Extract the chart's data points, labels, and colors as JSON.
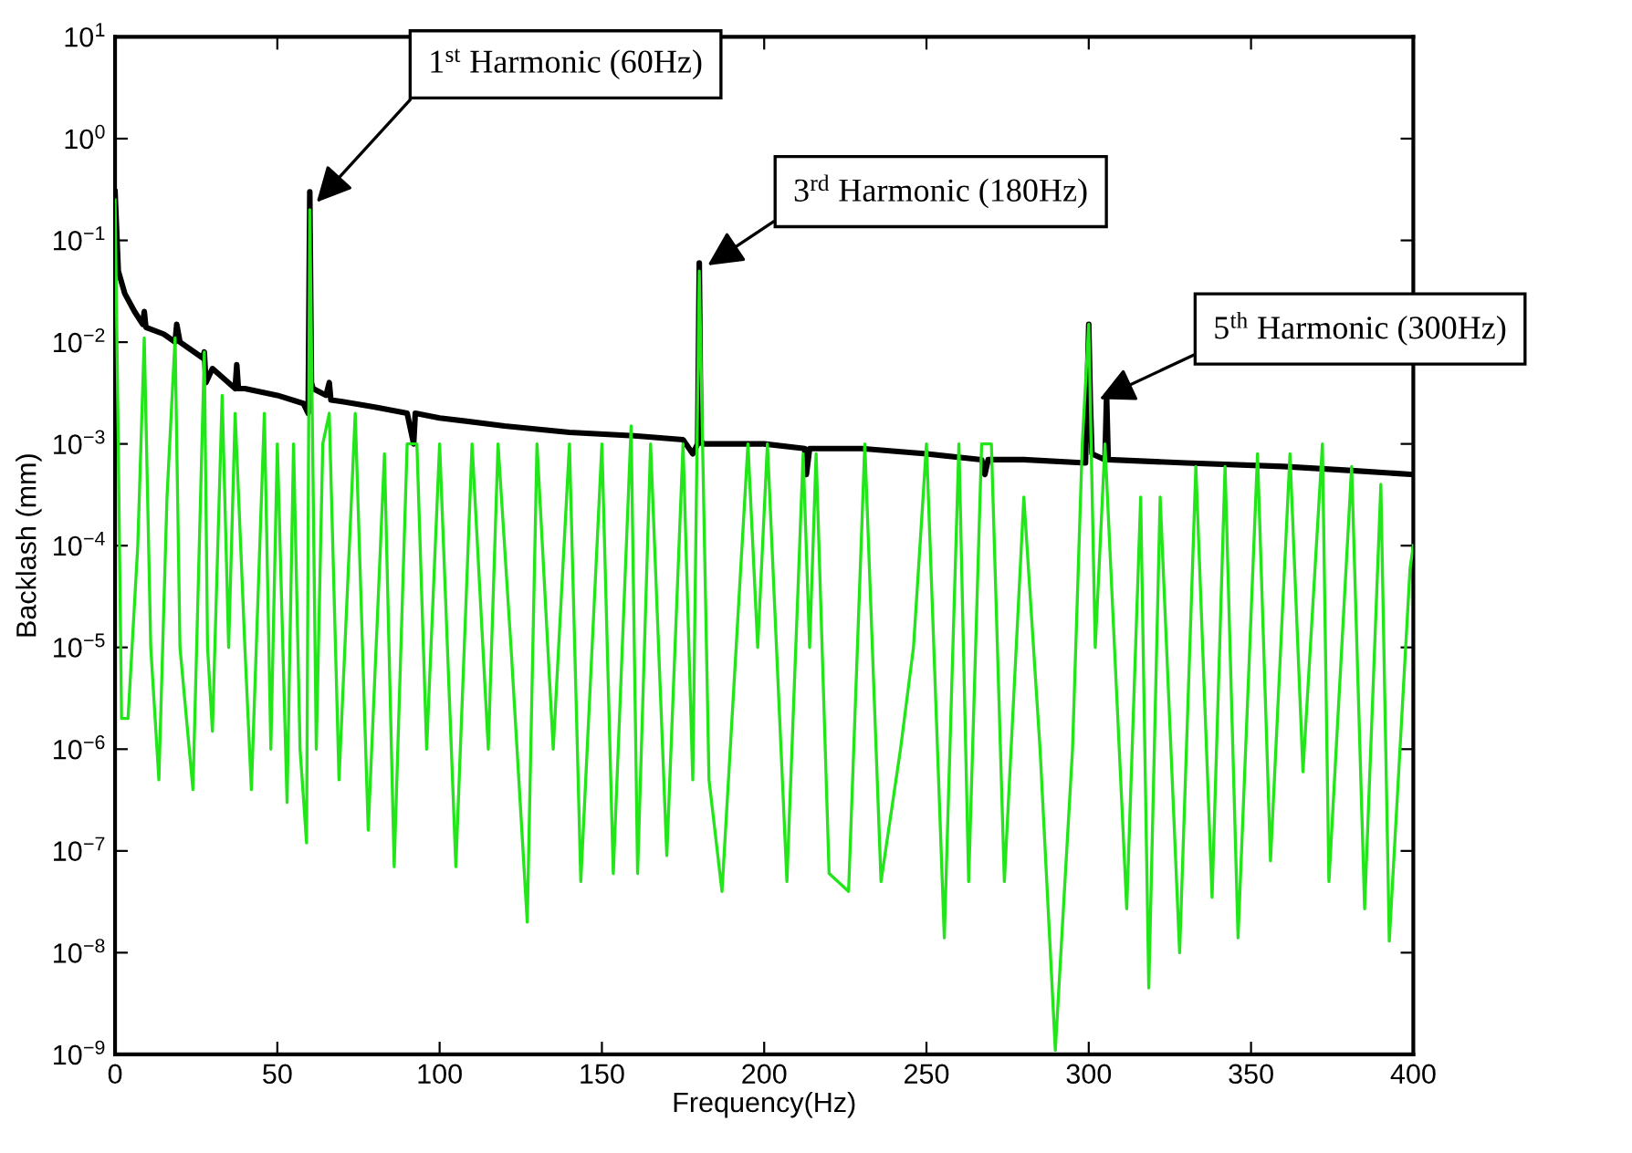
{
  "chart_data": {
    "type": "line",
    "xlabel": "Frequency(Hz)",
    "ylabel": "Backlash (mm)",
    "log": "y",
    "grid": false,
    "legend": false,
    "marker": "none",
    "line_style": "solid",
    "xlim": [
      0,
      400
    ],
    "xticks": [
      0,
      50,
      100,
      150,
      200,
      250,
      300,
      350,
      400
    ],
    "ylim": [
      1e-09,
      10
    ],
    "yticks": [
      {
        "value": 1e-09,
        "label": "10$^{−9}$"
      },
      {
        "value": 1e-08,
        "label": "10$^{−8}$"
      },
      {
        "value": 1e-07,
        "label": "10$^{−7}$"
      },
      {
        "value": 1e-06,
        "label": "10$^{−6}$"
      },
      {
        "value": 1e-05,
        "label": "10$^{−5}$"
      },
      {
        "value": 0.0001,
        "label": "10$^{−4}$"
      },
      {
        "value": 0.001,
        "label": "10$^{−3}$"
      },
      {
        "value": 0.01,
        "label": "10$^{−2}$"
      },
      {
        "value": 0.1,
        "label": "10$^{−1}$"
      },
      {
        "value": 1,
        "label": "10$^{0}$"
      },
      {
        "value": 10,
        "label": "10$^{1}$"
      }
    ],
    "series": [
      {
        "color": "#000000",
        "x": [
          0,
          1,
          3,
          6,
          8.5,
          9,
          9.5,
          15,
          18.5,
          19,
          20,
          27,
          27.5,
          28,
          30,
          37,
          37.5,
          38,
          40,
          50,
          58,
          59.5,
          60,
          60.5,
          61,
          65,
          66,
          66.5,
          70,
          80,
          90,
          92,
          92.5,
          100,
          120,
          140,
          160,
          175,
          178,
          179.5,
          180,
          180.5,
          181,
          200,
          212.5,
          213,
          214,
          230,
          250,
          267,
          268,
          269,
          280,
          299,
          300,
          300.5,
          301,
          305,
          305.5,
          306,
          330,
          360,
          380,
          400
        ],
        "values": [
          0.3,
          0.05,
          0.03,
          0.02,
          0.015,
          0.02,
          0.014,
          0.012,
          0.01,
          0.015,
          0.01,
          0.007,
          0.008,
          0.004,
          0.0055,
          0.0035,
          0.006,
          0.0035,
          0.0035,
          0.003,
          0.0025,
          0.002,
          0.3,
          0.004,
          0.0035,
          0.003,
          0.004,
          0.0027,
          0.0026,
          0.0023,
          0.002,
          0.001,
          0.002,
          0.0018,
          0.0015,
          0.0013,
          0.0012,
          0.0011,
          0.0008,
          0.001,
          0.06,
          0.0011,
          0.001,
          0.001,
          0.0009,
          0.0005,
          0.0009,
          0.0009,
          0.0008,
          0.0007,
          0.0005,
          0.0007,
          0.0007,
          0.00065,
          0.015,
          0.0025,
          0.0008,
          0.0007,
          0.003,
          0.0007,
          0.00065,
          0.0006,
          0.00055,
          0.0005
        ]
      },
      {
        "color": "#22e61a",
        "x": [
          0,
          1,
          2,
          4,
          7,
          9,
          11,
          13.5,
          16,
          18.5,
          20,
          24,
          27.5,
          28.5,
          30,
          33,
          35,
          37,
          40,
          42,
          46,
          48,
          50,
          53,
          55,
          57,
          59,
          60,
          62,
          64,
          66,
          69,
          74,
          78,
          83,
          86,
          90,
          93,
          96,
          100,
          105,
          110,
          115,
          118,
          122,
          127,
          130,
          135,
          140,
          143.5,
          150,
          153.5,
          159,
          161,
          165,
          170,
          175,
          178,
          180,
          183,
          187,
          195,
          198,
          201,
          207,
          212,
          214,
          216,
          220,
          226,
          231,
          236,
          242,
          246,
          250,
          255.5,
          260,
          263,
          267,
          270,
          274,
          280,
          285,
          289.7,
          295,
          298,
          300,
          302,
          305,
          311.7,
          316,
          318.5,
          322,
          328,
          333,
          338,
          342,
          346,
          352,
          356,
          362,
          366,
          372,
          374,
          381,
          385,
          390,
          392.6,
          399,
          400
        ],
        "values": [
          0.25,
          0.001,
          2e-06,
          2e-06,
          0.0001,
          0.011,
          1e-05,
          5e-07,
          0.0003,
          0.011,
          1e-05,
          4e-07,
          0.008,
          1e-05,
          1.5e-06,
          0.003,
          1e-05,
          0.002,
          1e-05,
          4e-07,
          0.002,
          1e-06,
          0.001,
          3e-07,
          0.001,
          1e-06,
          1.2e-07,
          0.2,
          1e-06,
          0.001,
          0.002,
          5e-07,
          0.002,
          1.6e-07,
          0.0008,
          7e-08,
          0.001,
          0.001,
          1e-06,
          0.001,
          7e-08,
          0.001,
          1e-06,
          0.001,
          1e-05,
          2e-08,
          0.001,
          1e-06,
          0.001,
          5e-08,
          0.001,
          6e-08,
          0.0015,
          6e-08,
          0.001,
          9e-08,
          0.001,
          5e-07,
          0.05,
          5e-07,
          4e-08,
          0.001,
          1e-05,
          0.001,
          5e-08,
          0.0008,
          1e-05,
          0.0008,
          6e-08,
          4e-08,
          0.001,
          5e-08,
          1e-06,
          1e-05,
          0.001,
          1.4e-08,
          0.001,
          5e-08,
          0.001,
          0.001,
          5e-08,
          0.0003,
          1e-06,
          1.1e-09,
          1e-06,
          0.001,
          0.015,
          1e-05,
          0.001,
          2.7e-08,
          0.0003,
          4.5e-09,
          0.0003,
          1e-08,
          0.0006,
          3.5e-08,
          0.0006,
          1.4e-08,
          0.0008,
          8e-08,
          0.0008,
          6e-07,
          0.001,
          5e-08,
          0.0006,
          2.7e-08,
          0.0004,
          1.3e-08,
          6e-05,
          0.0001
        ]
      }
    ],
    "annotations": [
      {
        "text": "1$^{st}$ Harmonic (60Hz)",
        "x": 60,
        "y": 0.2
      },
      {
        "text": "3$^{rd}$ Harmonic (180Hz)",
        "x": 180,
        "y": 0.05
      },
      {
        "text": "5$^{th}$ Harmonic (300Hz)",
        "x": 300.5,
        "y": 0.0025
      }
    ]
  }
}
